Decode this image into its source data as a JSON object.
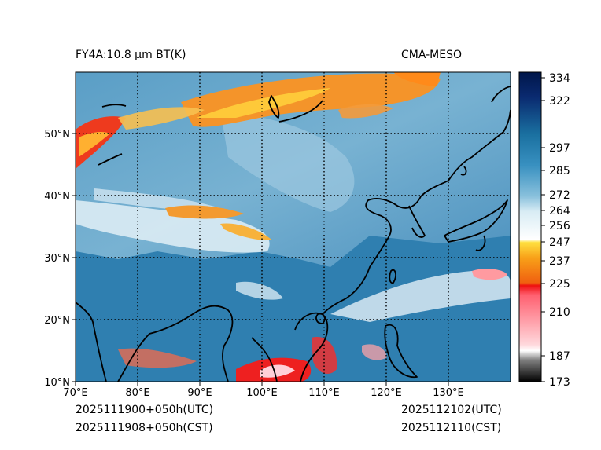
{
  "header": {
    "title_left": "FY4A:10.8 µm BT(K)",
    "title_right": "CMA-MESO"
  },
  "footer": {
    "init_utc": "2025111900+050h(UTC)",
    "init_cst": "2025111908+050h(CST)",
    "valid_utc": "2025112102(UTC)",
    "valid_cst": "2025112110(CST)"
  },
  "map": {
    "lon_labels": [
      "70°E",
      "80°E",
      "90°E",
      "100°E",
      "110°E",
      "120°E",
      "130°E"
    ],
    "lat_labels": [
      "10°N",
      "20°N",
      "30°N",
      "40°N",
      "50°N"
    ],
    "lon_range": [
      70,
      140
    ],
    "lat_range": [
      10,
      60
    ]
  },
  "colorbar": {
    "ticks": [
      "334",
      "322",
      "297",
      "285",
      "272",
      "264",
      "256",
      "247",
      "237",
      "225",
      "210",
      "187",
      "173"
    ],
    "range": [
      173,
      335
    ],
    "colors": {
      "ocean": "#2f7fb0",
      "land": "#6aa8cc",
      "cloud": "#e8f2f8",
      "cold_cloud": "#f07020"
    }
  }
}
